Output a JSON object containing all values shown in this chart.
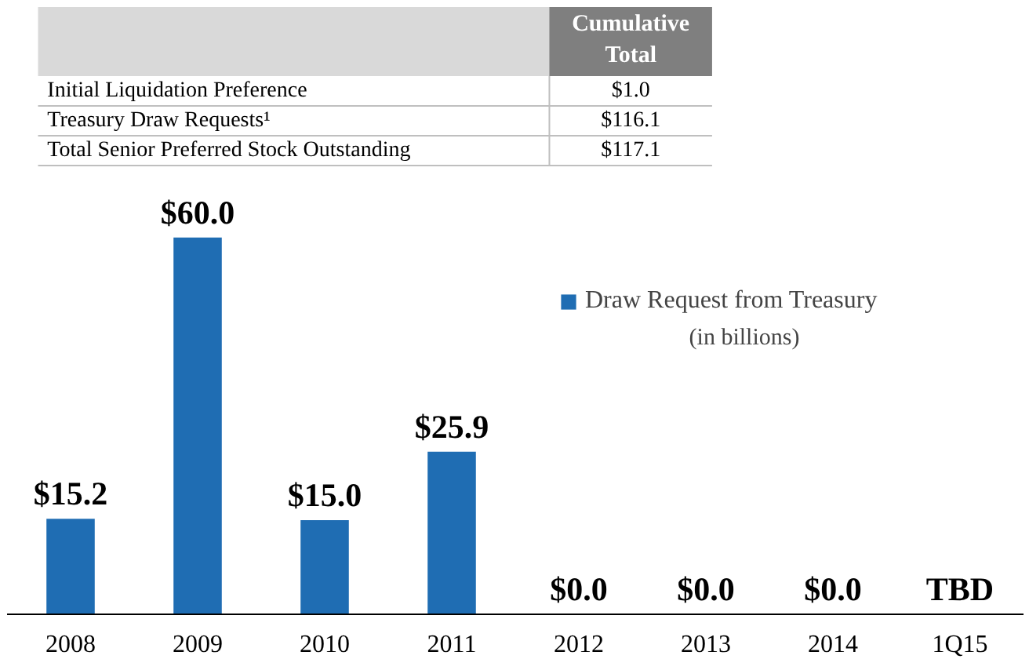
{
  "chart_data": {
    "type": "bar",
    "categories": [
      "2008",
      "2009",
      "2010",
      "2011",
      "2012",
      "2013",
      "2014",
      "1Q15"
    ],
    "series": [
      {
        "name": "Draw Request from Treasury",
        "color": "#1f6db3",
        "values": [
          15.2,
          60.0,
          15.0,
          25.9,
          0.0,
          0.0,
          0.0,
          null
        ],
        "value_labels": [
          "$15.2",
          "$60.0",
          "$15.0",
          "$25.9",
          "$0.0",
          "$0.0",
          "$0.0",
          "TBD"
        ]
      }
    ],
    "legend": "top right",
    "grid": false,
    "annotations": [
      "Cumulative Total",
      "Initial Liquidation Preference",
      "$1.0",
      "Treasury Draw Requests¹",
      "$116.1",
      "Total Senior Preferred Stock Outstanding",
      "$117.1",
      "(in billions)"
    ]
  }
}
